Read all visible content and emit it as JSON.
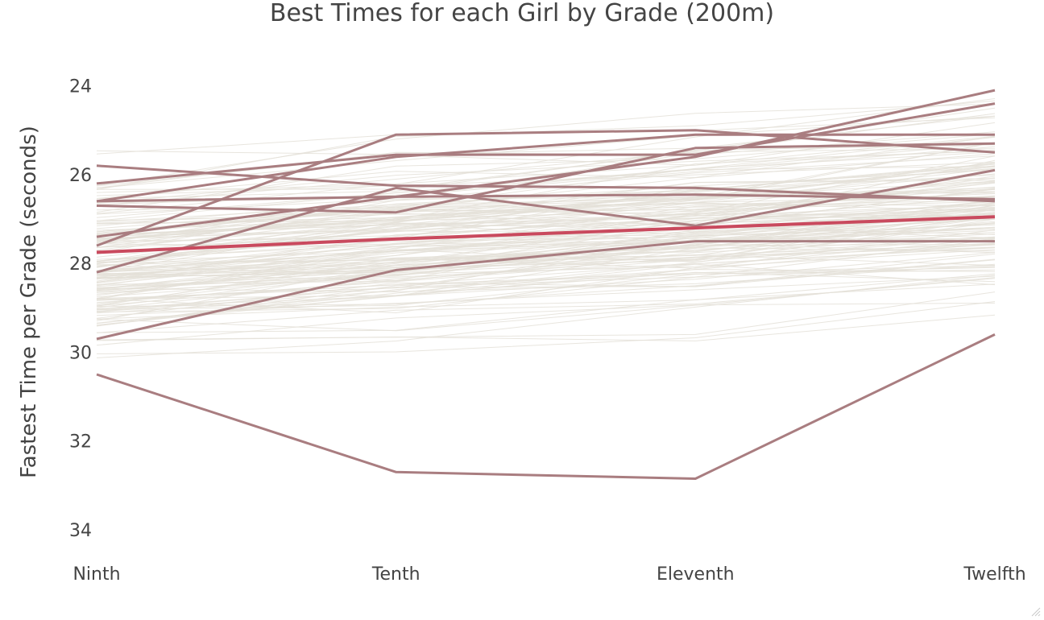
{
  "chart_data": {
    "type": "line",
    "title": "Best Times for each Girl by Grade (200m)",
    "xlabel": "",
    "ylabel": "Fastest Time per Grade (seconds)",
    "categories": [
      "Ninth",
      "Tenth",
      "Eleventh",
      "Twelfth"
    ],
    "yticks": [
      24,
      26,
      28,
      30,
      32,
      34
    ],
    "ylim": [
      34.4,
      23.3
    ],
    "y_reversed": true,
    "grid": false,
    "legend": "none",
    "colors": {
      "background_series": "#e4e1d8",
      "highlight_series": "#a97d80",
      "average_series": "#c94a5e",
      "text": "#444444"
    },
    "highlight_series": [
      {
        "values": [
          30.5,
          32.7,
          32.85,
          29.6
        ]
      },
      {
        "values": [
          29.7,
          28.15,
          27.5,
          27.5
        ]
      },
      {
        "values": [
          28.2,
          26.3,
          27.15,
          25.9
        ]
      },
      {
        "values": [
          27.6,
          25.1,
          25.0,
          25.5
        ]
      },
      {
        "values": [
          27.4,
          26.5,
          25.6,
          24.1
        ]
      },
      {
        "values": [
          26.2,
          25.55,
          25.55,
          24.4
        ]
      },
      {
        "values": [
          25.8,
          26.25,
          26.3,
          26.6
        ]
      },
      {
        "values": [
          26.6,
          26.5,
          26.45,
          26.55
        ]
      },
      {
        "values": [
          26.7,
          26.85,
          25.4,
          25.3
        ]
      },
      {
        "values": [
          26.6,
          25.6,
          25.1,
          25.1
        ]
      }
    ],
    "average_series": {
      "values": [
        27.75,
        27.45,
        27.2,
        26.95
      ]
    },
    "background_series_count": 160,
    "background_value_range": [
      23.2,
      34.1
    ]
  }
}
